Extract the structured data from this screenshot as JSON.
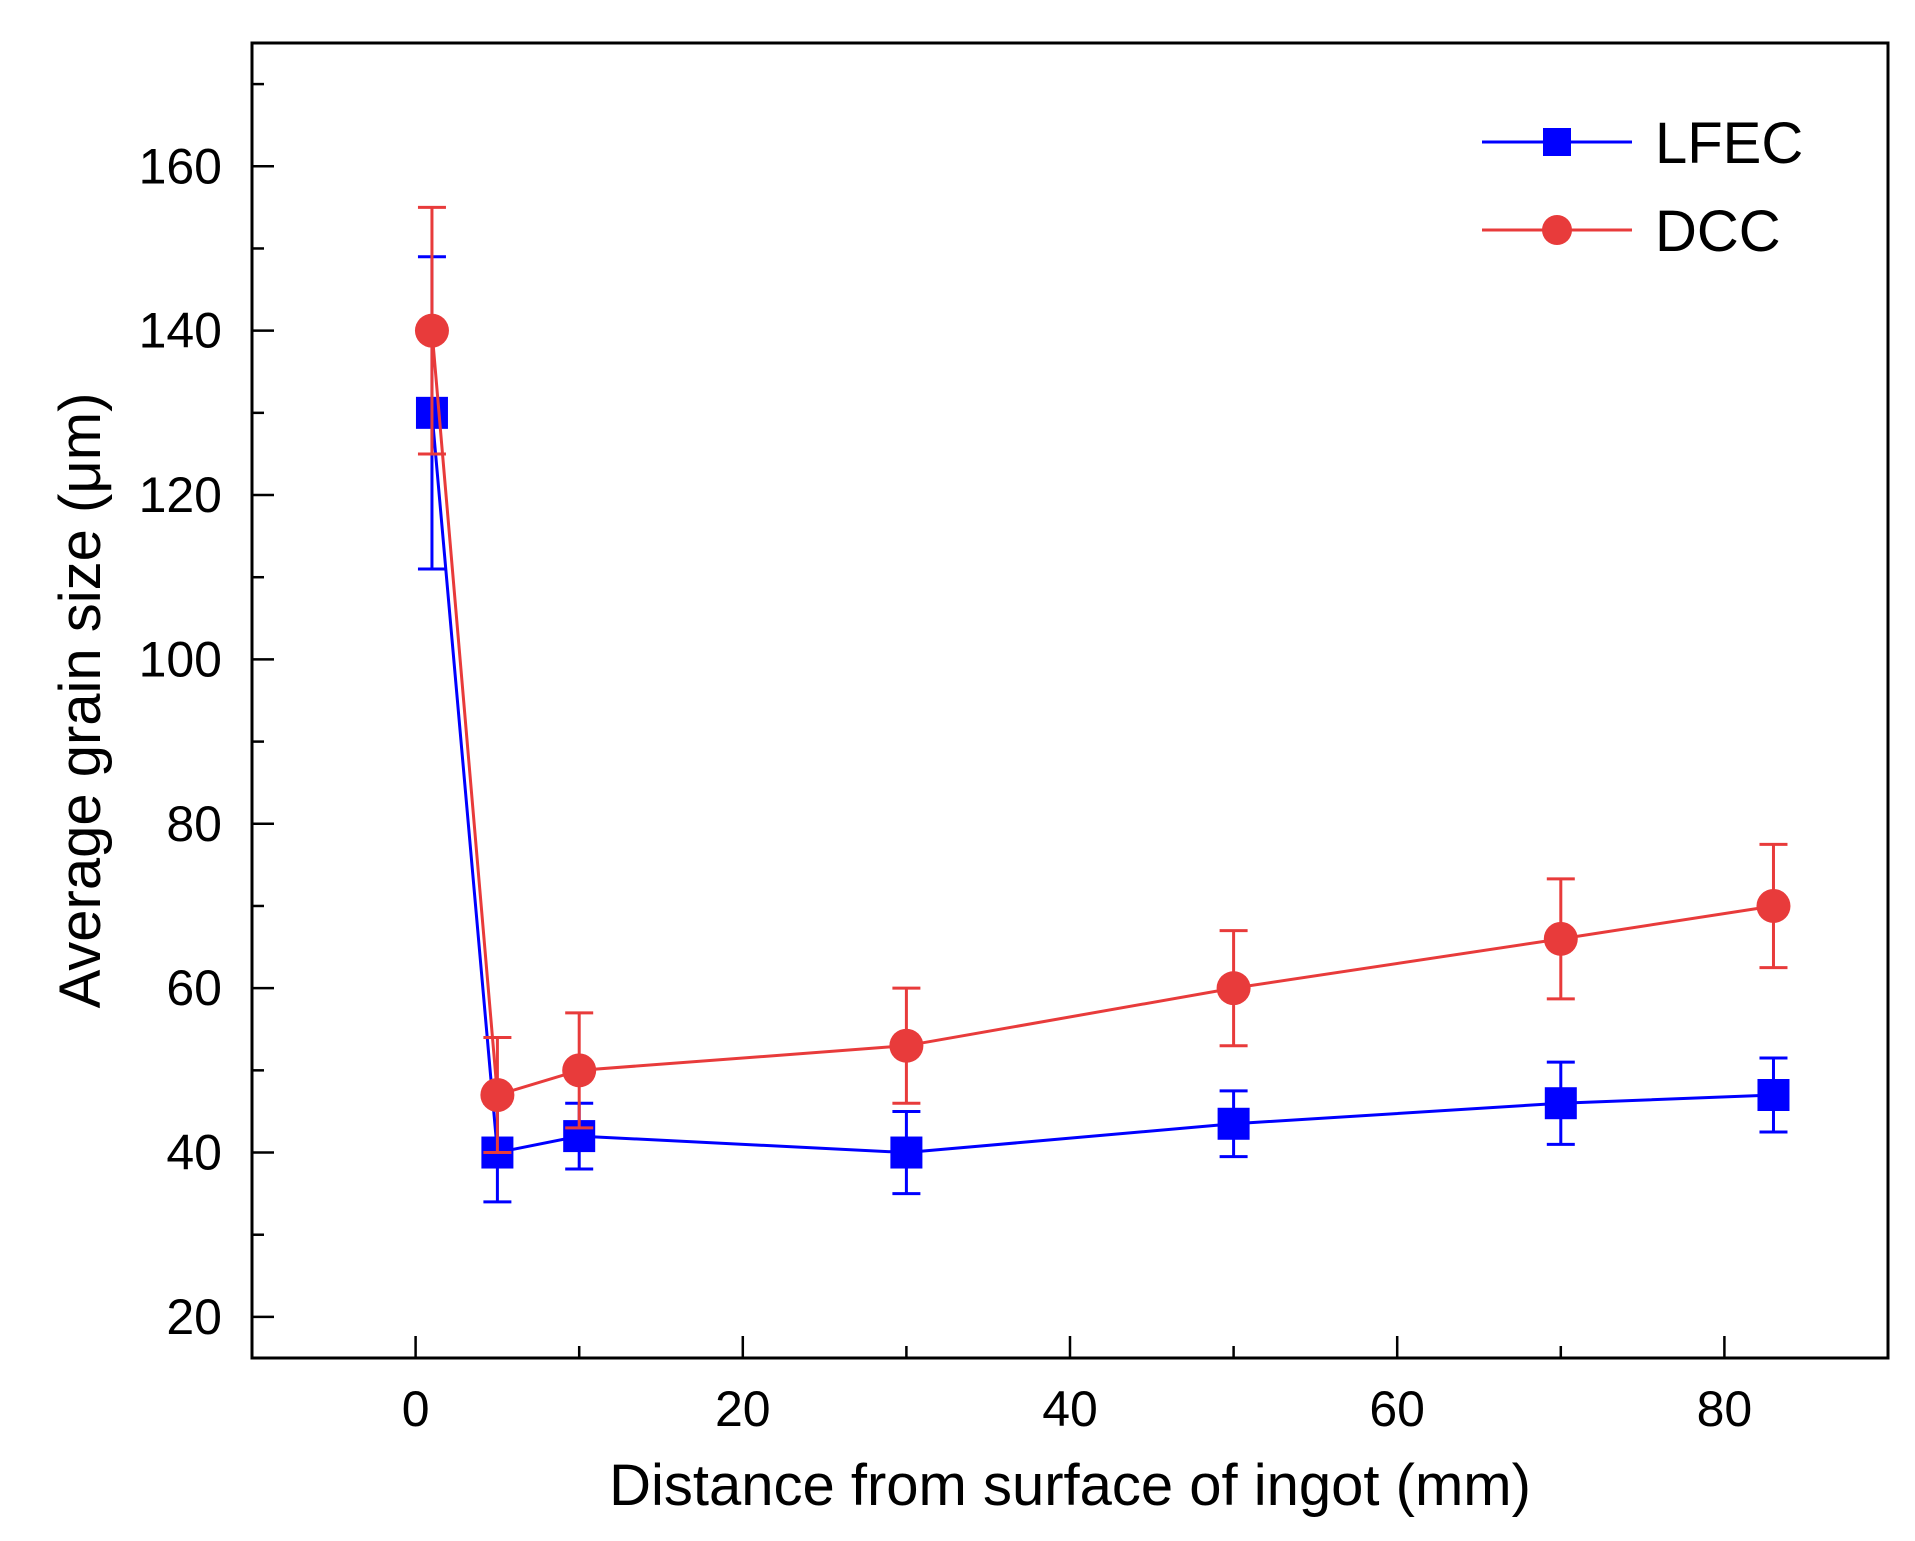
{
  "chart_data": {
    "type": "line",
    "xlabel": "Distance from surface of ingot (mm)",
    "ylabel": "Average grain size (μm)",
    "xlim": [
      -10,
      90
    ],
    "ylim": [
      15,
      175
    ],
    "xticks": [
      0,
      20,
      40,
      60,
      80
    ],
    "yticks": [
      20,
      40,
      60,
      80,
      100,
      120,
      140,
      160
    ],
    "grid": false,
    "legend_position": "top-right",
    "series": [
      {
        "name": "LFEC",
        "color": "#0000ff",
        "marker": "square",
        "x": [
          1,
          5,
          10,
          30,
          50,
          70,
          83
        ],
        "y": [
          130,
          40,
          42,
          40,
          43.5,
          46,
          47
        ],
        "err": [
          19,
          6,
          4,
          5,
          4,
          5,
          4.5
        ]
      },
      {
        "name": "DCC",
        "color": "#e83b3b",
        "marker": "circle",
        "x": [
          1,
          5,
          10,
          30,
          50,
          70,
          83
        ],
        "y": [
          140,
          47,
          50,
          53,
          60,
          66,
          70
        ],
        "err": [
          15,
          7,
          7,
          7,
          7,
          7.3,
          7.5
        ]
      }
    ]
  }
}
